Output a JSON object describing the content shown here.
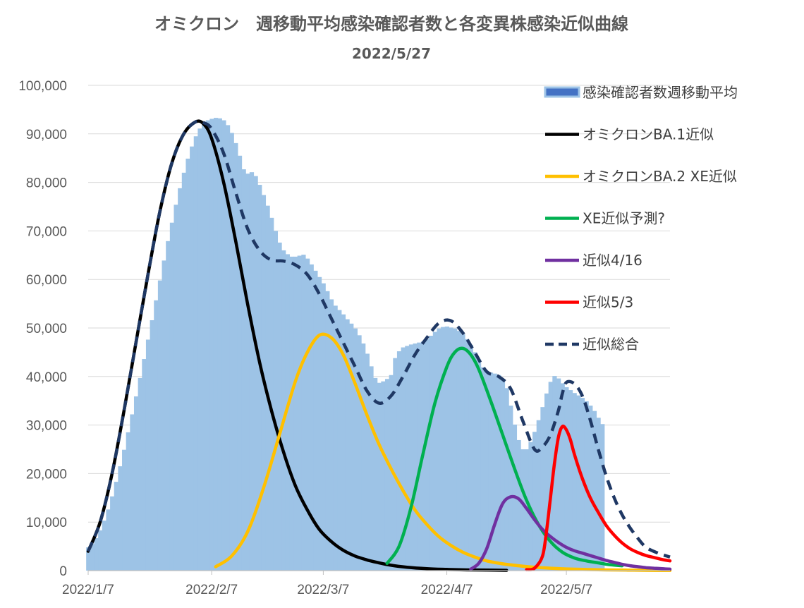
{
  "chart_data": {
    "type": "bar",
    "title": "オミクロン　週移動平均感染確認者数と各変異株感染近似曲線",
    "subtitle": "2022/5/27",
    "ylim": [
      0,
      100000
    ],
    "y_ticks": [
      "0",
      "10,000",
      "20,000",
      "30,000",
      "40,000",
      "50,000",
      "60,000",
      "70,000",
      "80,000",
      "90,000",
      "100,000"
    ],
    "x_ticks": [
      "2022/1/7",
      "2022/2/7",
      "2022/3/7",
      "2022/4/7",
      "2022/5/7"
    ],
    "x_tick_days": [
      0,
      31,
      59,
      90,
      120
    ],
    "x_range_days": [
      0,
      146
    ],
    "grid": true,
    "legend_position": "right",
    "bar_series": {
      "name": "感染確認者数週移動平均",
      "color": "#9DC3E6",
      "start_day": 0,
      "values": [
        4800,
        5500,
        6700,
        8300,
        10300,
        12600,
        15300,
        18300,
        21500,
        24900,
        28500,
        32200,
        35900,
        39700,
        43600,
        47600,
        51600,
        55700,
        59800,
        63900,
        67900,
        71700,
        75400,
        78800,
        82000,
        84900,
        87400,
        89500,
        91100,
        92200,
        92800,
        93100,
        93300,
        93200,
        92800,
        91800,
        90200,
        88100,
        85500,
        82700,
        81800,
        82100,
        81300,
        79500,
        77400,
        75200,
        72700,
        70000,
        67600,
        66000,
        65200,
        64700,
        64700,
        64900,
        65100,
        64300,
        63100,
        61800,
        60500,
        59200,
        57600,
        55900,
        54600,
        53700,
        52800,
        51800,
        50900,
        49900,
        48500,
        46800,
        44700,
        42100,
        39700,
        38700,
        39000,
        39500,
        40300,
        43800,
        45200,
        46000,
        46300,
        46600,
        46800,
        47000,
        47200,
        47700,
        48400,
        49200,
        49900,
        50200,
        50300,
        50100,
        49900,
        49400,
        48700,
        47700,
        46500,
        45000,
        43500,
        41900,
        41100,
        40800,
        40600,
        40300,
        39500,
        37600,
        34000,
        30100,
        26900,
        25000,
        25000,
        26500,
        28600,
        31000,
        33700,
        36500,
        38900,
        40100,
        39600,
        38600,
        37800,
        37200,
        36600,
        36100,
        35600,
        34900,
        34000,
        32900,
        31500,
        30200
      ]
    },
    "series": [
      {
        "name": "オミクロンBA.1近似",
        "color": "#000000",
        "dash": false,
        "x": [
          0,
          3,
          6,
          9,
          12,
          15,
          18,
          21,
          24,
          27,
          29,
          31,
          34,
          37,
          40,
          43,
          46,
          49,
          52,
          55,
          58,
          61,
          64,
          67,
          70,
          73,
          76,
          80,
          85,
          90,
          95,
          100,
          105
        ],
        "values": [
          4000,
          10000,
          20000,
          33000,
          47000,
          61000,
          74000,
          84000,
          90000,
          92500,
          92000,
          89000,
          80000,
          68000,
          55000,
          43000,
          33000,
          24500,
          17500,
          12500,
          8500,
          6000,
          4200,
          3000,
          2200,
          1600,
          1100,
          700,
          400,
          250,
          150,
          100,
          60
        ]
      },
      {
        "name": "オミクロンBA.2 XE近似",
        "color": "#FFC000",
        "dash": false,
        "x": [
          32,
          36,
          40,
          44,
          48,
          52,
          55,
          58,
          61,
          64,
          67,
          70,
          73,
          76,
          79,
          82,
          85,
          88,
          91,
          94,
          97,
          100,
          104,
          108,
          112,
          116,
          120,
          125,
          130,
          135,
          140,
          146
        ],
        "values": [
          800,
          3000,
          8000,
          17000,
          28000,
          39000,
          45000,
          48500,
          48000,
          44500,
          38500,
          32000,
          26000,
          21000,
          16500,
          12500,
          9500,
          7000,
          5200,
          3800,
          2800,
          2000,
          1400,
          1000,
          700,
          500,
          350,
          230,
          150,
          100,
          60,
          30
        ]
      },
      {
        "name": "XE近似予測?",
        "color": "#00B050",
        "dash": false,
        "x": [
          75,
          78,
          81,
          84,
          87,
          90,
          92,
          94,
          96,
          98,
          101,
          104,
          107,
          110,
          113,
          116,
          119,
          122,
          125,
          128,
          131,
          134
        ],
        "values": [
          1500,
          5000,
          13000,
          24000,
          34500,
          42000,
          45000,
          45800,
          44500,
          41500,
          35000,
          28000,
          21000,
          14500,
          9500,
          6000,
          3800,
          2600,
          2000,
          1600,
          1200,
          1000
        ]
      },
      {
        "name": "近似4/16",
        "color": "#7030A0",
        "dash": false,
        "x": [
          96,
          98,
          100,
          102,
          104,
          106,
          108,
          110,
          112,
          114,
          116,
          118,
          120,
          122,
          124,
          126,
          128,
          130,
          132,
          134,
          136,
          138,
          140,
          142,
          144,
          146
        ],
        "values": [
          300,
          1500,
          4500,
          9500,
          13800,
          15200,
          14800,
          12800,
          10500,
          8500,
          7000,
          5800,
          4800,
          4100,
          3600,
          3100,
          2600,
          2100,
          1700,
          1300,
          1000,
          800,
          600,
          500,
          400,
          300
        ]
      },
      {
        "name": "近似5/3",
        "color": "#FF0000",
        "dash": false,
        "x": [
          110,
          112,
          114,
          115,
          116,
          117,
          118,
          119,
          120,
          121,
          122,
          124,
          126,
          128,
          130,
          132,
          134,
          136,
          138,
          140,
          142,
          144,
          146
        ],
        "values": [
          200,
          500,
          3000,
          8000,
          15000,
          22000,
          27500,
          29700,
          29000,
          27000,
          24000,
          19000,
          15000,
          12000,
          9300,
          7300,
          5700,
          4500,
          3700,
          3100,
          2700,
          2300,
          2000
        ]
      },
      {
        "name": "近似総合",
        "color": "#1F3864",
        "dash": true,
        "x": [
          0,
          3,
          6,
          9,
          12,
          15,
          18,
          21,
          24,
          27,
          29,
          31,
          34,
          37,
          40,
          43,
          46,
          49,
          52,
          55,
          58,
          61,
          64,
          67,
          70,
          73,
          76,
          79,
          82,
          85,
          88,
          91,
          94,
          97,
          100,
          103,
          106,
          109,
          112,
          114,
          116,
          118,
          119,
          120,
          122,
          124,
          126,
          128,
          130,
          132,
          134,
          136,
          138,
          140,
          143,
          146
        ],
        "values": [
          4000,
          10000,
          20000,
          33000,
          47000,
          61000,
          74000,
          84000,
          90000,
          92500,
          92300,
          91000,
          86000,
          78000,
          70500,
          66000,
          64000,
          63800,
          63000,
          61000,
          57000,
          52000,
          47000,
          42000,
          37000,
          34500,
          36000,
          40000,
          44500,
          48000,
          51000,
          51500,
          49000,
          45000,
          41000,
          40000,
          37500,
          31000,
          25000,
          25500,
          28000,
          33000,
          36500,
          38800,
          38500,
          36000,
          31000,
          25000,
          19500,
          15000,
          11500,
          8800,
          6600,
          4800,
          3600,
          2800
        ]
      }
    ]
  }
}
